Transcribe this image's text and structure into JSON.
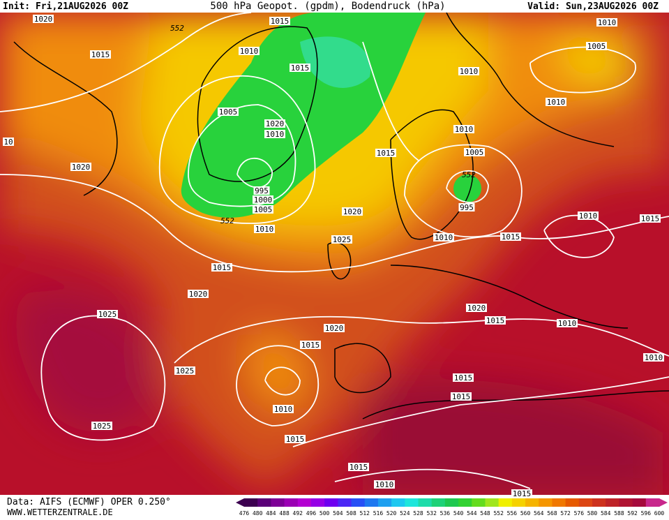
{
  "header": {
    "init": "Init: Fri,21AUG2026 00Z",
    "title": "500 hPa Geopot. (gpdm), Bodendruck (hPa)",
    "valid": "Valid: Sun,23AUG2026 00Z"
  },
  "map": {
    "isobar_labels": [
      "1020",
      "1015",
      "552",
      "1010",
      "1015",
      "1010",
      "1005",
      "1015",
      "1010",
      "1010",
      "1005",
      "1020",
      "1010",
      "1010",
      "1015",
      "1005",
      "10",
      "1020",
      "552",
      "995",
      "1000",
      "995",
      "1005",
      "1020",
      "552",
      "1010",
      "1025",
      "1010",
      "1015",
      "1010",
      "1015",
      "1015",
      "1020",
      "1020",
      "1015",
      "1010",
      "1025",
      "1020",
      "1015",
      "1010",
      "1025",
      "1015",
      "1015",
      "1010",
      "1025",
      "1015",
      "1015",
      "1010",
      "1015"
    ]
  },
  "colorbar": {
    "labels": [
      "476",
      "480",
      "484",
      "488",
      "492",
      "496",
      "500",
      "504",
      "508",
      "512",
      "516",
      "520",
      "524",
      "528",
      "532",
      "536",
      "540",
      "544",
      "548",
      "552",
      "556",
      "560",
      "564",
      "568",
      "572",
      "576",
      "580",
      "584",
      "588",
      "592",
      "596",
      "600"
    ],
    "colors": [
      "#3c0050",
      "#5a0078",
      "#7d0096",
      "#9b00b4",
      "#b400d2",
      "#9600e6",
      "#6e00f0",
      "#4b28f5",
      "#2850f5",
      "#1e78f0",
      "#1ea0f0",
      "#1ec8f0",
      "#1ee6dc",
      "#1edcaa",
      "#1ed278",
      "#1ec850",
      "#32d232",
      "#64dc1e",
      "#a0e61e",
      "#f0f000",
      "#f5d200",
      "#f5b400",
      "#f59600",
      "#f07800",
      "#e65a00",
      "#dc4614",
      "#cd321e",
      "#be2328",
      "#b01432",
      "#a50a3c",
      "#c8288c"
    ]
  },
  "footer": {
    "data": "Data: AIFS (ECMWF) OPER 0.250°",
    "site": "WWW.WETTERZENTRALE.DE"
  }
}
